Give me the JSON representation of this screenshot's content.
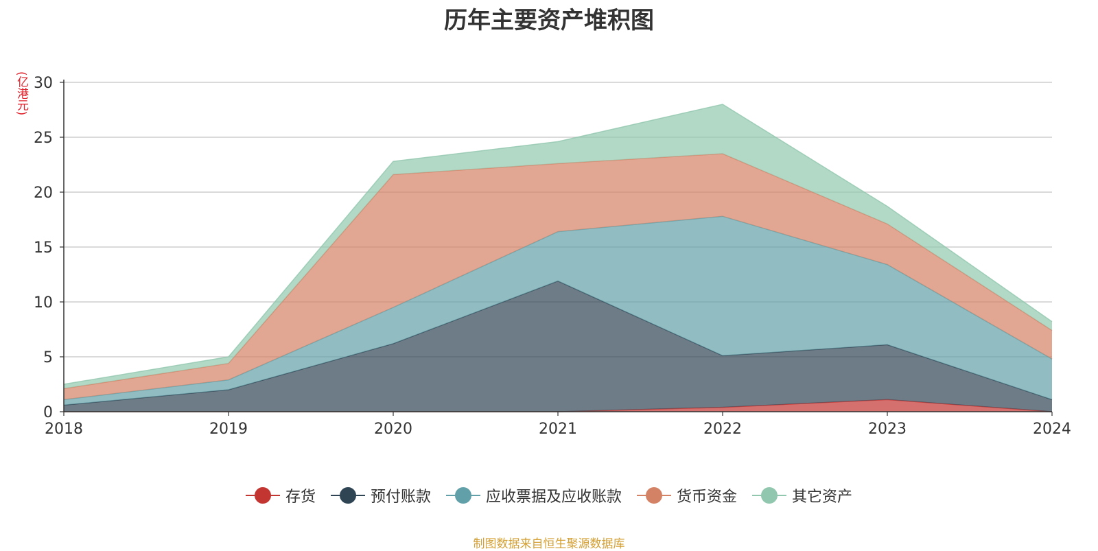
{
  "chart_data": {
    "type": "area",
    "stacked": true,
    "title": "历年主要资产堆积图",
    "unit": "(亿港元)",
    "x": [
      "2018",
      "2019",
      "2020",
      "2021",
      "2022",
      "2023",
      "2024"
    ],
    "ylim": [
      0,
      30
    ],
    "yticks": [
      0,
      5,
      10,
      15,
      20,
      25,
      30
    ],
    "grid": true,
    "legend_position": "bottom",
    "series": [
      {
        "name": "存货",
        "color": "#c23531",
        "values": [
          0,
          0,
          0,
          0,
          0.4,
          1.1,
          0
        ]
      },
      {
        "name": "预付账款",
        "color": "#2f4554",
        "values": [
          0.6,
          2.0,
          6.2,
          11.9,
          4.7,
          5.0,
          1.1
        ]
      },
      {
        "name": "应收票据及应收账款",
        "color": "#61a0a8",
        "values": [
          0.5,
          0.9,
          3.3,
          4.5,
          12.7,
          7.3,
          3.7
        ]
      },
      {
        "name": "货币资金",
        "color": "#d48265",
        "values": [
          1.0,
          1.5,
          12.1,
          6.2,
          5.7,
          3.7,
          2.6
        ]
      },
      {
        "name": "其它资产",
        "color": "#91c7ae",
        "values": [
          0.4,
          0.6,
          1.2,
          2.0,
          4.5,
          1.6,
          0.8
        ]
      }
    ]
  },
  "footer": {
    "source": "制图数据来自恒生聚源数据库"
  }
}
